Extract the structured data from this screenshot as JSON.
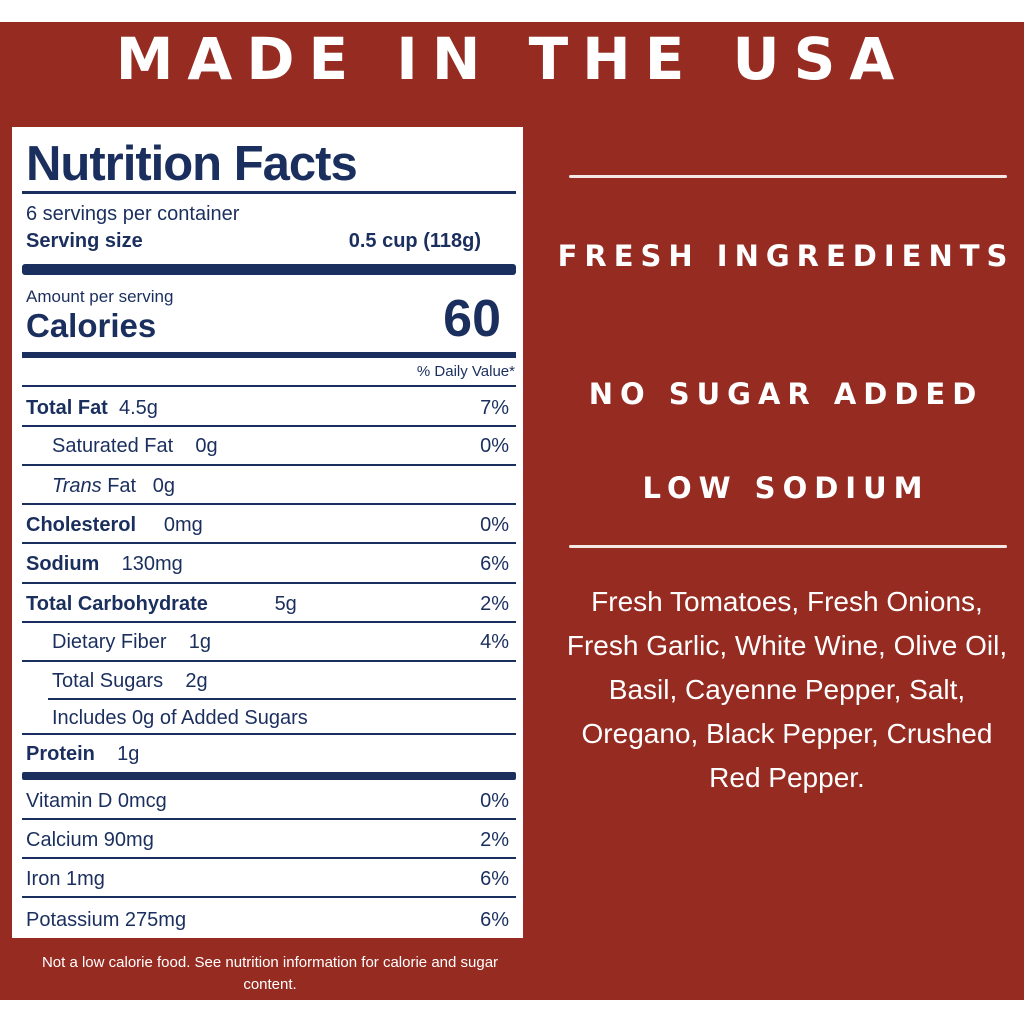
{
  "headline": "MADE IN THE USA",
  "nutrition": {
    "title": "Nutrition Facts",
    "servings_per_container": "6 servings per container",
    "serving_size_label": "Serving size",
    "serving_size_value": "0.5 cup (118g)",
    "amount_per_serving": "Amount per serving",
    "calories_label": "Calories",
    "calories_value": "60",
    "daily_value_header": "% Daily Value*",
    "rows": [
      {
        "name": "Total Fat",
        "amount": "4.5g",
        "dv": "7%"
      },
      {
        "name": "Saturated Fat",
        "amount": "0g",
        "dv": "0%"
      },
      {
        "name_italic": "Trans",
        "name": "Fat",
        "amount": "0g",
        "dv": ""
      },
      {
        "name": "Cholesterol",
        "amount": "0mg",
        "dv": "0%"
      },
      {
        "name": "Sodium",
        "amount": "130mg",
        "dv": "6%"
      },
      {
        "name": "Total Carbohydrate",
        "amount": "5g",
        "dv": "2%"
      },
      {
        "name": "Dietary Fiber",
        "amount": "1g",
        "dv": "4%"
      },
      {
        "name": "Total Sugars",
        "amount": "2g",
        "dv": ""
      },
      {
        "name": "Includes 0g of Added Sugars",
        "amount": "",
        "dv": ""
      },
      {
        "name": "Protein",
        "amount": "1g",
        "dv": ""
      }
    ],
    "vitamins": [
      {
        "name": "Vitamin D 0mcg",
        "dv": "0%"
      },
      {
        "name": "Calcium 90mg",
        "dv": "2%"
      },
      {
        "name": "Iron 1mg",
        "dv": "6%"
      },
      {
        "name": "Potassium 275mg",
        "dv": "6%"
      }
    ]
  },
  "footnote": "Not a low calorie food. See nutrition information for calorie and sugar content.",
  "claims": [
    "FRESH INGREDIENTS",
    "NO SUGAR ADDED",
    "LOW SODIUM"
  ],
  "ingredients": "Fresh Tomatoes, Fresh Onions, Fresh Garlic, White Wine, Olive Oil, Basil, Cayenne Pepper, Salt, Oregano, Black Pepper, Crushed Red Pepper.",
  "colors": {
    "background": "#962b22",
    "label_ink": "#1b2f5e",
    "text": "#ffffff"
  }
}
